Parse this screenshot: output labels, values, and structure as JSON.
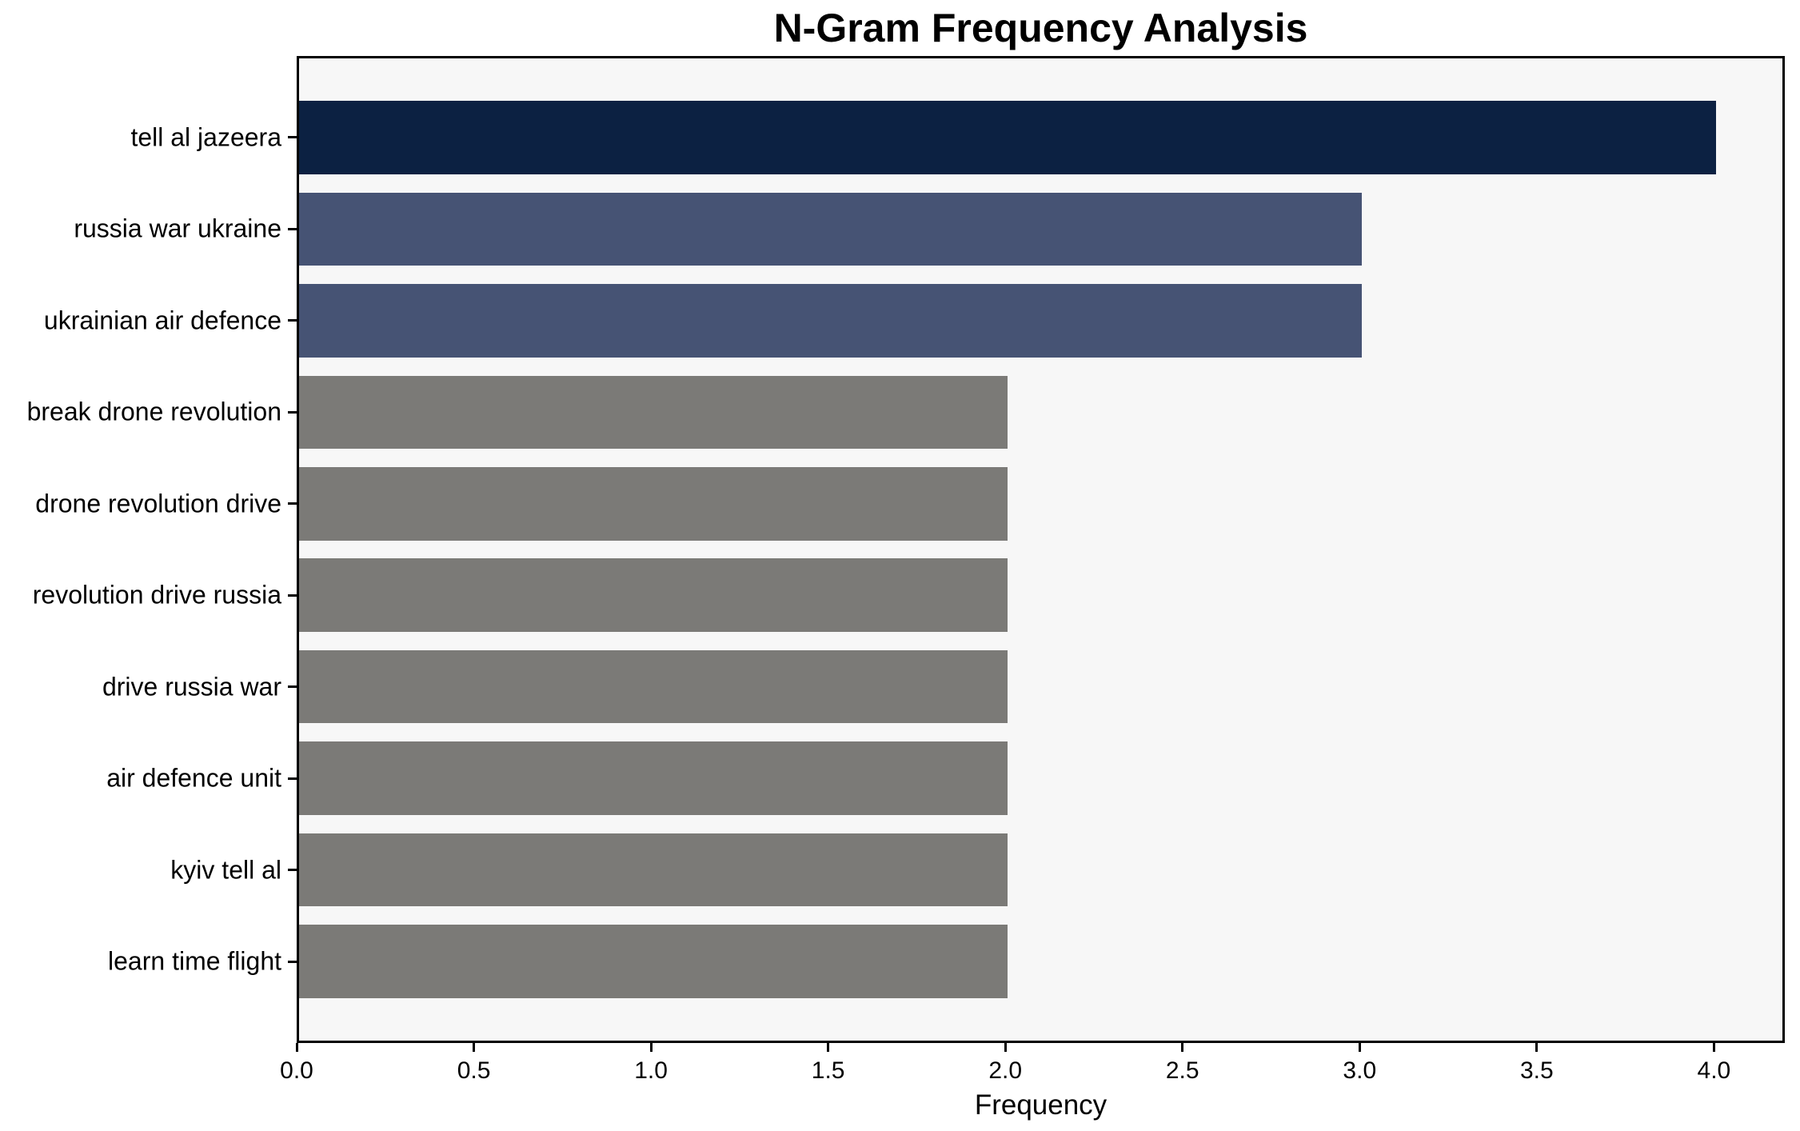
{
  "chart_data": {
    "type": "bar",
    "orientation": "horizontal",
    "title": "N-Gram Frequency Analysis",
    "xlabel": "Frequency",
    "ylabel": "",
    "categories": [
      "tell al jazeera",
      "russia war ukraine",
      "ukrainian air defence",
      "break drone revolution",
      "drone revolution drive",
      "revolution drive russia",
      "drive russia war",
      "air defence unit",
      "kyiv tell al",
      "learn time flight"
    ],
    "values": [
      4,
      3,
      3,
      2,
      2,
      2,
      2,
      2,
      2,
      2
    ],
    "bar_colors": [
      "#0c2142",
      "#465374",
      "#465374",
      "#7b7a77",
      "#7b7a77",
      "#7b7a77",
      "#7b7a77",
      "#7b7a77",
      "#7b7a77",
      "#7b7a77"
    ],
    "xlim": [
      0,
      4.2
    ],
    "xticks": [
      0,
      0.5,
      1,
      1.5,
      2,
      2.5,
      3,
      3.5,
      4
    ],
    "xtick_labels": [
      "0.0",
      "0.5",
      "1.0",
      "1.5",
      "2.0",
      "2.5",
      "3.0",
      "3.5",
      "4.0"
    ],
    "grid": false,
    "legend": null,
    "colors": {
      "plot_background": "#f7f7f7",
      "figure_background": "#ffffff",
      "axis": "#000000",
      "text": "#000000"
    }
  }
}
